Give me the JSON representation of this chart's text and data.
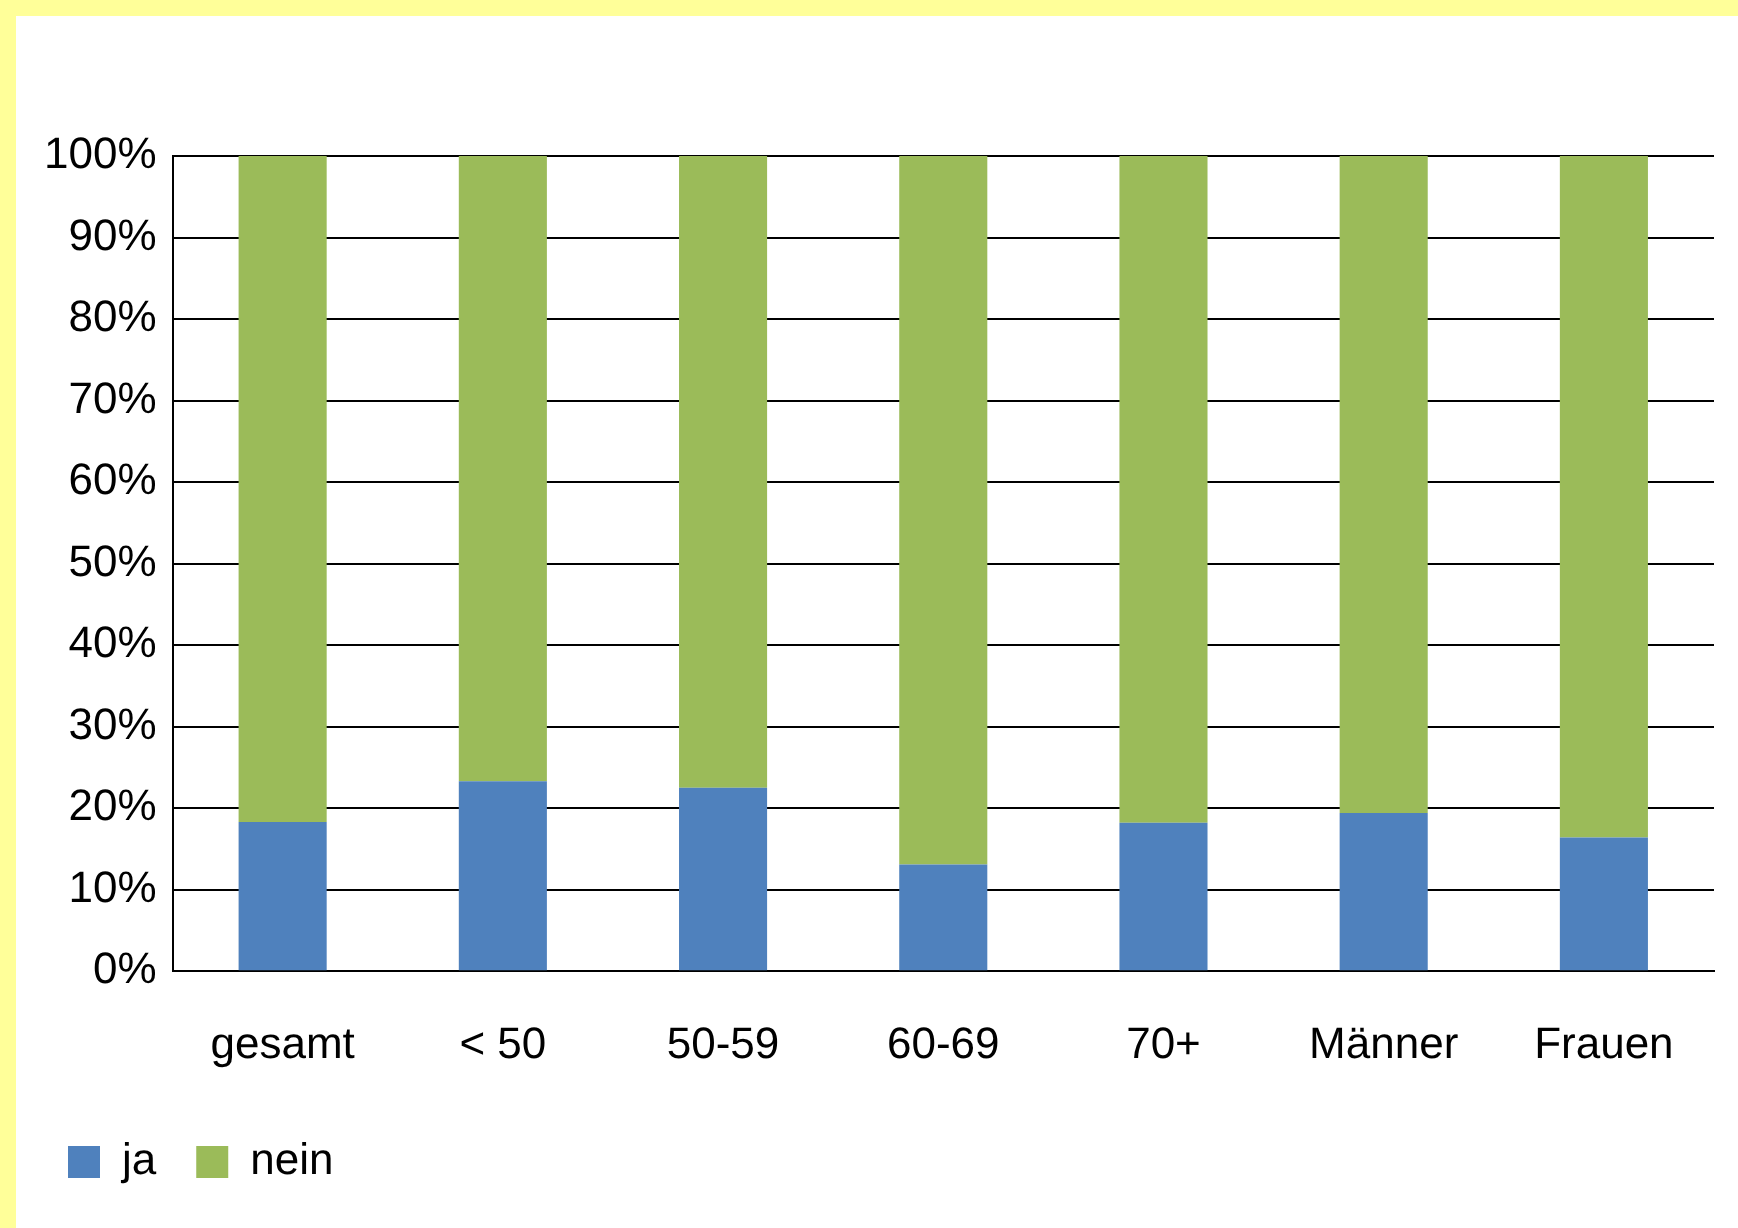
{
  "chart_data": {
    "type": "bar",
    "stacked": true,
    "categories": [
      "gesamt",
      "< 50",
      "50-59",
      "60-69",
      "70+",
      "Männer",
      "Frauen"
    ],
    "series": [
      {
        "name": "ja",
        "color": "#4f81bd",
        "values": [
          18.3,
          23.3,
          22.5,
          13.1,
          18.2,
          19.4,
          16.4
        ]
      },
      {
        "name": "nein",
        "color": "#9bbb59",
        "values": [
          81.7,
          76.7,
          77.5,
          86.9,
          81.8,
          80.6,
          83.6
        ]
      }
    ],
    "ylim": [
      0,
      100
    ],
    "yticks": [
      {
        "value": 0,
        "label": "0%"
      },
      {
        "value": 10,
        "label": "10%"
      },
      {
        "value": 20,
        "label": "20%"
      },
      {
        "value": 30,
        "label": "30%"
      },
      {
        "value": 40,
        "label": "40%"
      },
      {
        "value": 50,
        "label": "50%"
      },
      {
        "value": 60,
        "label": "60%"
      },
      {
        "value": 70,
        "label": "70%"
      },
      {
        "value": 80,
        "label": "80%"
      },
      {
        "value": 90,
        "label": "90%"
      },
      {
        "value": 100,
        "label": "100%"
      }
    ],
    "grid": "y",
    "legend": "bottom left"
  }
}
